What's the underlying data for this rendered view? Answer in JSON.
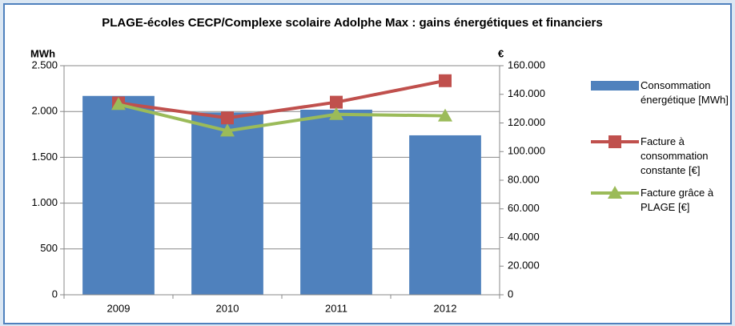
{
  "chart_data": {
    "type": "bar-line",
    "title": "PLAGE-écoles CECP/Complexe scolaire Adolphe Max : gains énergétiques et financiers",
    "ylabel": "MWh",
    "y2label": "€",
    "categories": [
      "2009",
      "2010",
      "2011",
      "2012"
    ],
    "series": [
      {
        "name": "Consommation énergétique [MWh]",
        "type": "bar",
        "color": "#4f81bd",
        "axis": "y",
        "values": [
          2170,
          1990,
          2020,
          1740
        ]
      },
      {
        "name": "Facture à consommation constante [€]",
        "type": "line",
        "color": "#c0504d",
        "axis": "y2",
        "values": [
          134000,
          123500,
          134500,
          149500
        ]
      },
      {
        "name": "Facture grâce à PLAGE [€]",
        "type": "line",
        "color": "#9bbb59",
        "axis": "y2",
        "values": [
          133000,
          114500,
          126000,
          125000
        ]
      }
    ],
    "ylim": [
      0,
      2500
    ],
    "yticks": [
      0,
      500,
      {
        "value": 1000,
        "label": "1.000"
      },
      {
        "value": 1500,
        "label": "1.500"
      },
      {
        "value": 2000,
        "label": "2.000"
      },
      {
        "value": 2500,
        "label": "2.500"
      }
    ],
    "y2lim": [
      0,
      160000
    ],
    "y2ticks": [
      0,
      {
        "value": 20000,
        "label": "20.000"
      },
      {
        "value": 40000,
        "label": "40.000"
      },
      {
        "value": 60000,
        "label": "60.000"
      },
      {
        "value": 80000,
        "label": "80.000"
      },
      {
        "value": 100000,
        "label": "100.000"
      },
      {
        "value": 120000,
        "label": "120.000"
      },
      {
        "value": 140000,
        "label": "140.000"
      },
      {
        "value": 160000,
        "label": "160.000"
      }
    ],
    "grid": true
  }
}
